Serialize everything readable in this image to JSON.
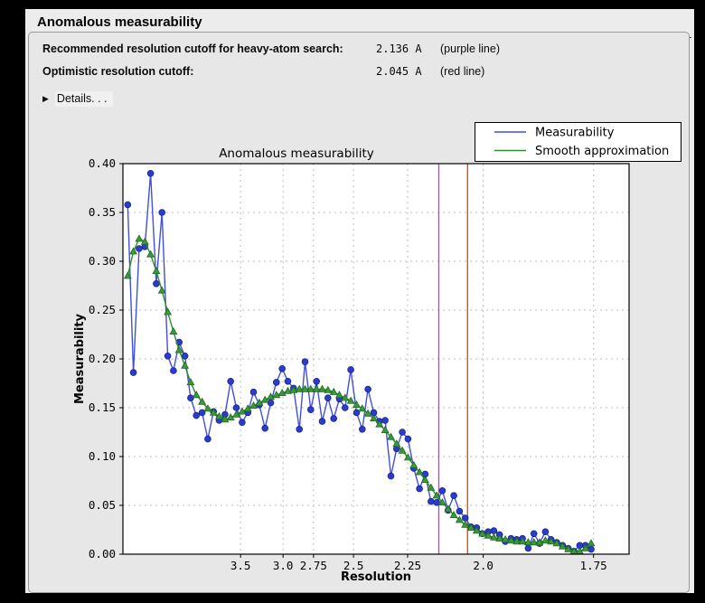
{
  "window": {
    "title": "Anomalous measurability"
  },
  "info_rows": [
    {
      "label": "Recommended resolution cutoff for heavy-atom search:",
      "value": "2.136 A",
      "note": "(purple line)"
    },
    {
      "label": "Optimistic resolution cutoff:",
      "value": "2.045 A",
      "note": "(red line)"
    }
  ],
  "details": {
    "label": "Details. . .",
    "icon": "disclosure-triangle-right"
  },
  "chart_data": {
    "type": "line",
    "title": "Anomalous measurability",
    "xlabel": "Resolution",
    "ylabel": "Measurability",
    "grid": true,
    "grid_color": "#bdbdbd",
    "x_axis": {
      "unit": "angstrom",
      "scale": "linear in 1/d^2, resolution decreasing left to right",
      "tick_labels": [
        "3.5",
        "3.0",
        "2.75",
        "2.5",
        "2.25",
        "2.0",
        "1.75"
      ],
      "s2_range": [
        0.0,
        0.3512
      ]
    },
    "y_axis": {
      "tick_labels": [
        "0.00",
        "0.05",
        "0.10",
        "0.15",
        "0.20",
        "0.25",
        "0.30",
        "0.35",
        "0.40"
      ],
      "range": [
        0.0,
        0.4
      ]
    },
    "legend": {
      "position": "upper-right-outside-axes",
      "entries": [
        "Measurability",
        "Smooth approximation"
      ]
    },
    "s2_start": 0.0033,
    "s2_step": 0.00397,
    "series": [
      {
        "name": "Measurability",
        "marker": "circle",
        "line_color": "#4150da",
        "marker_color": "#2b3ccc",
        "marker_edge": "#16248f",
        "values": [
          0.358,
          0.186,
          0.313,
          0.315,
          0.39,
          0.277,
          0.35,
          0.203,
          0.188,
          0.217,
          0.203,
          0.16,
          0.142,
          0.145,
          0.118,
          0.146,
          0.137,
          0.143,
          0.177,
          0.15,
          0.135,
          0.145,
          0.166,
          0.153,
          0.129,
          0.155,
          0.176,
          0.19,
          0.177,
          0.17,
          0.128,
          0.197,
          0.148,
          0.177,
          0.136,
          0.16,
          0.139,
          0.159,
          0.15,
          0.189,
          0.145,
          0.128,
          0.169,
          0.145,
          0.136,
          0.137,
          0.08,
          0.108,
          0.125,
          0.118,
          0.088,
          0.067,
          0.082,
          0.054,
          0.053,
          0.065,
          0.045,
          0.06,
          0.044,
          0.037,
          0.028,
          0.027,
          0.021,
          0.023,
          0.024,
          0.02,
          0.013,
          0.016,
          0.015,
          0.016,
          0.006,
          0.021,
          0.011,
          0.023,
          0.015,
          0.012,
          0.009,
          0.006,
          0.003,
          0.009,
          0.009,
          0.005
        ]
      },
      {
        "name": "Smooth approximation",
        "marker": "triangle",
        "line_color": "#2e8b2e",
        "marker_color": "#3a9a3a",
        "marker_edge": "#1f6b1f",
        "values": [
          0.285,
          0.31,
          0.323,
          0.32,
          0.307,
          0.29,
          0.27,
          0.248,
          0.228,
          0.209,
          0.193,
          0.176,
          0.163,
          0.156,
          0.149,
          0.145,
          0.141,
          0.138,
          0.14,
          0.143,
          0.146,
          0.149,
          0.152,
          0.155,
          0.158,
          0.161,
          0.163,
          0.165,
          0.167,
          0.168,
          0.169,
          0.169,
          0.169,
          0.169,
          0.169,
          0.168,
          0.166,
          0.163,
          0.16,
          0.157,
          0.153,
          0.149,
          0.144,
          0.139,
          0.133,
          0.127,
          0.12,
          0.113,
          0.106,
          0.099,
          0.091,
          0.084,
          0.076,
          0.068,
          0.06,
          0.053,
          0.046,
          0.04,
          0.035,
          0.03,
          0.027,
          0.024,
          0.021,
          0.019,
          0.017,
          0.016,
          0.015,
          0.014,
          0.013,
          0.013,
          0.012,
          0.012,
          0.012,
          0.014,
          0.013,
          0.011,
          0.008,
          0.005,
          0.003,
          0.003,
          0.006,
          0.011
        ]
      }
    ],
    "vlines": [
      {
        "name": "recommended-cutoff",
        "resolution": 2.136,
        "color": "#c73ac7",
        "label": "purple line"
      },
      {
        "name": "optimistic-cutoff",
        "resolution": 2.045,
        "color": "#dd4400",
        "label": "red line"
      }
    ]
  }
}
